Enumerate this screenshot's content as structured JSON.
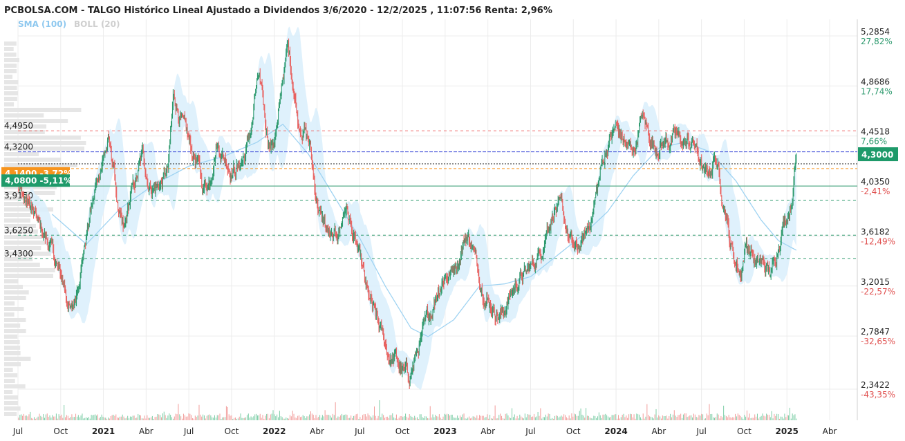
{
  "header": {
    "title": "PCBOLSA.COM - TALGO Histórico Lineal Ajustado a Dividendos 3/6/2020 - 12/2/2025 , 11:07:56 Renta: 2,96%",
    "legend_sma": "SMA (100)",
    "legend_boll": "BOLL (20)"
  },
  "colors": {
    "up": "#2e9a6e",
    "down": "#e8615f",
    "band": "#d9effc",
    "sma": "#9fd3f2",
    "grid": "#ececec",
    "tag_green": "#1e9a6a",
    "tag_orange": "#f7941d",
    "blue_line": "#3b49d6",
    "red_dash": "#ef6a6a",
    "green_dash": "#2e9a6e"
  },
  "chart_data": {
    "type": "line",
    "title": "PCBOLSA.COM - TALGO Histórico Lineal Ajustado a Dividendos 3/6/2020 - 12/2/2025 , 11:07:56 Renta: 2,96%",
    "date_range": [
      "2020-06-03",
      "2025-02-12"
    ],
    "ylim": [
      2.15,
      5.4
    ],
    "grid": true,
    "x_ticks": [
      {
        "label": "Jul",
        "t": 0.0,
        "year": false
      },
      {
        "label": "Oct",
        "t": 0.25,
        "year": false
      },
      {
        "label": "2021",
        "t": 0.5,
        "year": true
      },
      {
        "label": "Abr",
        "t": 0.75,
        "year": false
      },
      {
        "label": "Jul",
        "t": 1.0,
        "year": false
      },
      {
        "label": "Oct",
        "t": 1.25,
        "year": false
      },
      {
        "label": "2022",
        "t": 1.5,
        "year": true
      },
      {
        "label": "Abr",
        "t": 1.75,
        "year": false
      },
      {
        "label": "Jul",
        "t": 2.0,
        "year": false
      },
      {
        "label": "Oct",
        "t": 2.25,
        "year": false
      },
      {
        "label": "2023",
        "t": 2.5,
        "year": true
      },
      {
        "label": "Abr",
        "t": 2.75,
        "year": false
      },
      {
        "label": "Jul",
        "t": 3.0,
        "year": false
      },
      {
        "label": "Oct",
        "t": 3.25,
        "year": false
      },
      {
        "label": "2024",
        "t": 3.5,
        "year": true
      },
      {
        "label": "Abr",
        "t": 3.75,
        "year": false
      },
      {
        "label": "Jul",
        "t": 4.0,
        "year": false
      },
      {
        "label": "Oct",
        "t": 4.25,
        "year": false
      },
      {
        "label": "2025",
        "t": 4.5,
        "year": true
      },
      {
        "label": "Abr",
        "t": 4.75,
        "year": false
      }
    ],
    "right_axis": [
      {
        "value": 5.2854,
        "label": "5,2854",
        "pct": "27,82%",
        "sign": "pos"
      },
      {
        "value": 4.8686,
        "label": "4,8686",
        "pct": "17,74%",
        "sign": "pos"
      },
      {
        "value": 4.4518,
        "label": "4,4518",
        "pct": "7,66%",
        "sign": "pos"
      },
      {
        "value": 4.035,
        "label": "4,0350",
        "pct": "-2,41%",
        "sign": "neg"
      },
      {
        "value": 3.6182,
        "label": "3,6182",
        "pct": "-12,49%",
        "sign": "neg"
      },
      {
        "value": 3.2015,
        "label": "3,2015",
        "pct": "-22,57%",
        "sign": "neg"
      },
      {
        "value": 2.7847,
        "label": "2,7847",
        "pct": "-32,65%",
        "sign": "neg"
      },
      {
        "value": 2.3422,
        "label": "2,3422",
        "pct": "-43,35%",
        "sign": "neg"
      }
    ],
    "levels": [
      {
        "value": 4.495,
        "label": "4,4950",
        "style": "red-dash"
      },
      {
        "value": 4.32,
        "label": "4,3200",
        "style": "blue"
      },
      {
        "value": 3.915,
        "label": "3,9150",
        "style": "green-dash"
      },
      {
        "value": 3.625,
        "label": "3,6250",
        "style": "green-dash"
      },
      {
        "value": 3.43,
        "label": "3,4300",
        "style": "green-dash"
      }
    ],
    "tags": [
      {
        "value": 4.14,
        "text": "4,1400 -3,72%",
        "color": "orange"
      },
      {
        "value": 4.08,
        "text": "4,0800 -5,11%",
        "color": "green"
      }
    ],
    "last_price": {
      "value": 4.3,
      "label": "4,3000"
    },
    "price_path": [
      [
        0.0,
        4.0
      ],
      [
        0.07,
        3.86
      ],
      [
        0.13,
        3.68
      ],
      [
        0.19,
        3.52
      ],
      [
        0.23,
        3.35
      ],
      [
        0.27,
        3.2
      ],
      [
        0.31,
        2.98
      ],
      [
        0.33,
        3.05
      ],
      [
        0.37,
        3.4
      ],
      [
        0.41,
        3.7
      ],
      [
        0.45,
        3.98
      ],
      [
        0.5,
        4.3
      ],
      [
        0.53,
        4.4
      ],
      [
        0.56,
        4.18
      ],
      [
        0.59,
        3.78
      ],
      [
        0.62,
        3.62
      ],
      [
        0.66,
        3.95
      ],
      [
        0.7,
        4.12
      ],
      [
        0.73,
        4.3
      ],
      [
        0.76,
        4.08
      ],
      [
        0.8,
        4.02
      ],
      [
        0.84,
        4.06
      ],
      [
        0.88,
        4.18
      ],
      [
        0.91,
        4.78
      ],
      [
        0.94,
        4.66
      ],
      [
        0.98,
        4.48
      ],
      [
        1.02,
        4.3
      ],
      [
        1.05,
        4.25
      ],
      [
        1.08,
        4.02
      ],
      [
        1.12,
        4.08
      ],
      [
        1.16,
        4.4
      ],
      [
        1.2,
        4.3
      ],
      [
        1.25,
        4.18
      ],
      [
        1.29,
        4.2
      ],
      [
        1.33,
        4.3
      ],
      [
        1.37,
        4.55
      ],
      [
        1.4,
        4.9
      ],
      [
        1.43,
        4.8
      ],
      [
        1.45,
        4.55
      ],
      [
        1.48,
        4.35
      ],
      [
        1.52,
        4.55
      ],
      [
        1.55,
        4.95
      ],
      [
        1.58,
        5.2
      ],
      [
        1.61,
        4.9
      ],
      [
        1.64,
        4.58
      ],
      [
        1.68,
        4.5
      ],
      [
        1.71,
        4.35
      ],
      [
        1.74,
        4.0
      ],
      [
        1.77,
        3.78
      ],
      [
        1.8,
        3.7
      ],
      [
        1.84,
        3.55
      ],
      [
        1.88,
        3.66
      ],
      [
        1.92,
        3.88
      ],
      [
        1.96,
        3.62
      ],
      [
        2.0,
        3.42
      ],
      [
        2.04,
        3.15
      ],
      [
        2.08,
        2.98
      ],
      [
        2.13,
        2.8
      ],
      [
        2.17,
        2.62
      ],
      [
        2.21,
        2.58
      ],
      [
        2.25,
        2.48
      ],
      [
        2.29,
        2.44
      ],
      [
        2.33,
        2.62
      ],
      [
        2.37,
        2.8
      ],
      [
        2.42,
        3.0
      ],
      [
        2.46,
        3.2
      ],
      [
        2.5,
        3.3
      ],
      [
        2.54,
        3.32
      ],
      [
        2.58,
        3.45
      ],
      [
        2.62,
        3.62
      ],
      [
        2.66,
        3.55
      ],
      [
        2.7,
        3.28
      ],
      [
        2.74,
        3.12
      ],
      [
        2.78,
        3.02
      ],
      [
        2.82,
        2.96
      ],
      [
        2.86,
        3.05
      ],
      [
        2.9,
        3.18
      ],
      [
        2.94,
        3.28
      ],
      [
        2.98,
        3.3
      ],
      [
        3.02,
        3.4
      ],
      [
        3.06,
        3.5
      ],
      [
        3.1,
        3.72
      ],
      [
        3.14,
        3.86
      ],
      [
        3.18,
        3.82
      ],
      [
        3.22,
        3.62
      ],
      [
        3.26,
        3.48
      ],
      [
        3.3,
        3.55
      ],
      [
        3.34,
        3.7
      ],
      [
        3.38,
        3.95
      ],
      [
        3.42,
        4.22
      ],
      [
        3.46,
        4.42
      ],
      [
        3.5,
        4.52
      ],
      [
        3.54,
        4.42
      ],
      [
        3.57,
        4.35
      ],
      [
        3.61,
        4.35
      ],
      [
        3.65,
        4.62
      ],
      [
        3.69,
        4.48
      ],
      [
        3.73,
        4.35
      ],
      [
        3.77,
        4.4
      ],
      [
        3.81,
        4.42
      ],
      [
        3.85,
        4.45
      ],
      [
        3.89,
        4.4
      ],
      [
        3.93,
        4.38
      ],
      [
        3.96,
        4.38
      ],
      [
        3.99,
        4.25
      ],
      [
        4.02,
        4.1
      ],
      [
        4.05,
        4.15
      ],
      [
        4.08,
        4.3
      ],
      [
        4.11,
        4.05
      ],
      [
        4.14,
        3.85
      ],
      [
        4.17,
        3.55
      ],
      [
        4.2,
        3.4
      ],
      [
        4.23,
        3.32
      ],
      [
        4.26,
        3.55
      ],
      [
        4.29,
        3.5
      ],
      [
        4.32,
        3.36
      ],
      [
        4.35,
        3.4
      ],
      [
        4.38,
        3.34
      ],
      [
        4.41,
        3.3
      ],
      [
        4.44,
        3.48
      ],
      [
        4.47,
        3.7
      ],
      [
        4.5,
        3.8
      ],
      [
        4.53,
        3.95
      ],
      [
        4.555,
        4.3
      ]
    ],
    "sma_path": [
      [
        0.2,
        3.8
      ],
      [
        0.4,
        3.55
      ],
      [
        0.6,
        3.85
      ],
      [
        0.8,
        4.05
      ],
      [
        1.0,
        4.2
      ],
      [
        1.2,
        4.28
      ],
      [
        1.4,
        4.4
      ],
      [
        1.55,
        4.55
      ],
      [
        1.7,
        4.3
      ],
      [
        1.85,
        3.95
      ],
      [
        2.0,
        3.6
      ],
      [
        2.15,
        3.2
      ],
      [
        2.3,
        2.85
      ],
      [
        2.4,
        2.78
      ],
      [
        2.55,
        2.92
      ],
      [
        2.7,
        3.2
      ],
      [
        2.85,
        3.22
      ],
      [
        3.0,
        3.28
      ],
      [
        3.15,
        3.45
      ],
      [
        3.3,
        3.62
      ],
      [
        3.45,
        3.82
      ],
      [
        3.6,
        4.12
      ],
      [
        3.75,
        4.35
      ],
      [
        3.9,
        4.4
      ],
      [
        4.05,
        4.32
      ],
      [
        4.2,
        4.08
      ],
      [
        4.35,
        3.75
      ],
      [
        4.45,
        3.58
      ],
      [
        4.555,
        3.5
      ]
    ],
    "volume_profile_note": "left histogram",
    "volume_ylim": [
      0,
      1
    ]
  }
}
